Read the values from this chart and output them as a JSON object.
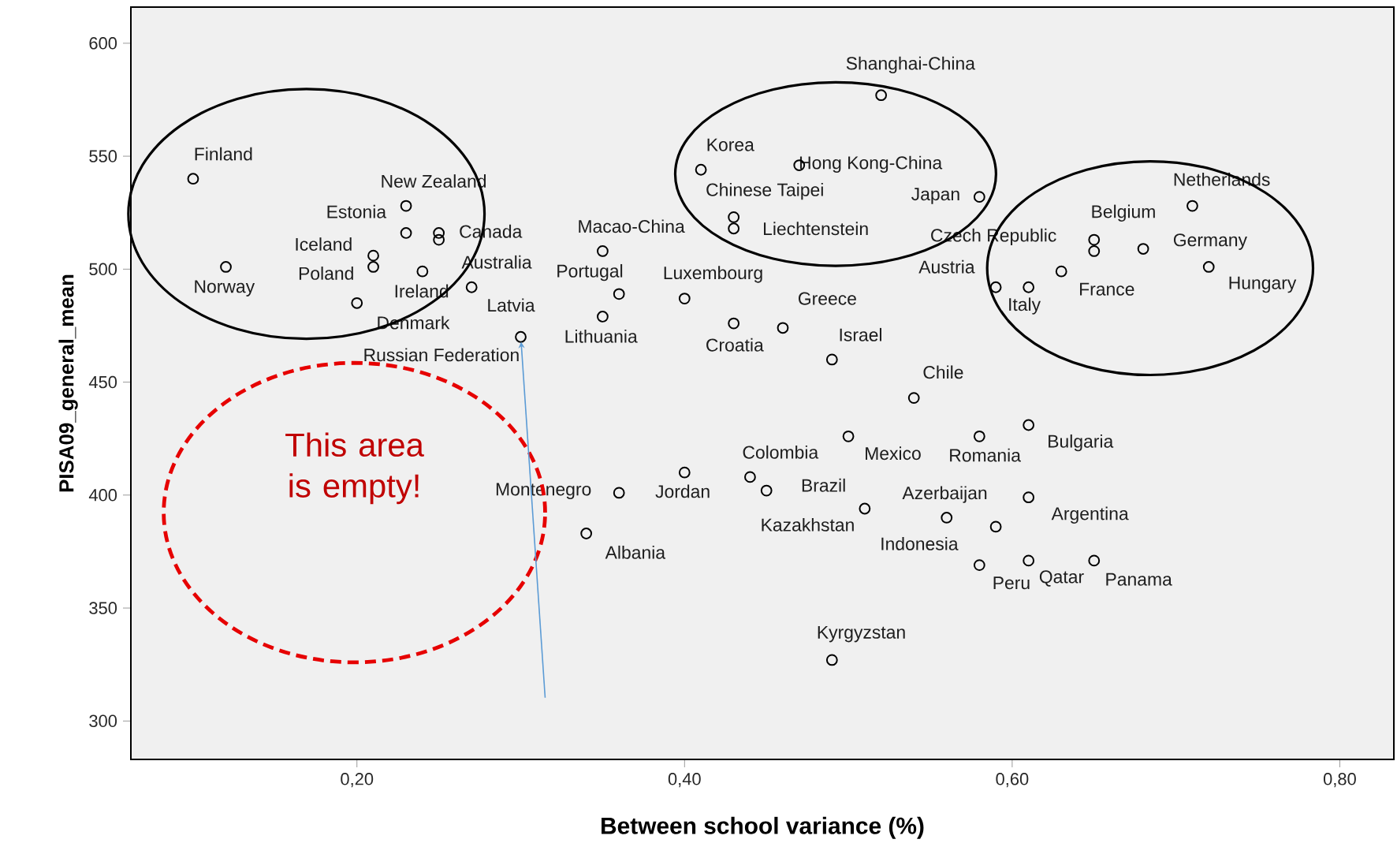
{
  "chart_data": {
    "type": "scatter",
    "xlabel": "Between school variance (%)",
    "ylabel": "PISA09_general_mean",
    "x": [
      0.1,
      0.12,
      0.23,
      0.23,
      0.25,
      0.25,
      0.21,
      0.21,
      0.24,
      0.2,
      0.27,
      0.3,
      0.35,
      0.36,
      0.35,
      0.4,
      0.43,
      0.46,
      0.49,
      0.54,
      0.52,
      0.41,
      0.47,
      0.43,
      0.43,
      0.58,
      0.65,
      0.65,
      0.59,
      0.61,
      0.63,
      0.68,
      0.71,
      0.72,
      0.61,
      0.58,
      0.5,
      0.44,
      0.45,
      0.4,
      0.36,
      0.34,
      0.51,
      0.56,
      0.61,
      0.59,
      0.58,
      0.61,
      0.65,
      0.49
    ],
    "values": [
      540,
      501,
      528,
      516,
      516,
      513,
      506,
      501,
      499,
      485,
      492,
      470,
      508,
      489,
      479,
      487,
      476,
      474,
      460,
      443,
      577,
      544,
      546,
      523,
      518,
      532,
      508,
      513,
      492,
      492,
      499,
      509,
      528,
      501,
      431,
      426,
      426,
      408,
      402,
      410,
      401,
      383,
      394,
      390,
      399,
      386,
      369,
      371,
      371,
      327
    ],
    "color": "#000000",
    "marker": "circle",
    "xlim": [
      0.062,
      0.833
    ],
    "ylim": [
      283,
      616
    ],
    "xticks": [
      {
        "value": 0.2,
        "label": "0,20"
      },
      {
        "value": 0.4,
        "label": "0,40"
      },
      {
        "value": 0.6,
        "label": "0,60"
      },
      {
        "value": 0.8,
        "label": "0,80"
      }
    ],
    "yticks": [
      300,
      350,
      400,
      450,
      500,
      550,
      600
    ],
    "annotations": [
      {
        "text": "Finland",
        "x": 0.1,
        "y": 540
      },
      {
        "text": "Norway",
        "x": 0.12,
        "y": 501
      },
      {
        "text": "New Zealand",
        "x": 0.23,
        "y": 528
      },
      {
        "text": "Estonia",
        "x": 0.23,
        "y": 516
      },
      {
        "text": "Canada",
        "x": 0.25,
        "y": 516
      },
      {
        "text": "Australia",
        "x": 0.25,
        "y": 513
      },
      {
        "text": "Iceland",
        "x": 0.21,
        "y": 506
      },
      {
        "text": "Poland",
        "x": 0.21,
        "y": 501
      },
      {
        "text": "Ireland",
        "x": 0.24,
        "y": 499
      },
      {
        "text": "Denmark",
        "x": 0.2,
        "y": 485
      },
      {
        "text": "Latvia",
        "x": 0.27,
        "y": 492
      },
      {
        "text": "Russian Federation",
        "x": 0.3,
        "y": 470
      },
      {
        "text": "Macao-China",
        "x": 0.35,
        "y": 508
      },
      {
        "text": "Portugal",
        "x": 0.36,
        "y": 489
      },
      {
        "text": "Lithuania",
        "x": 0.35,
        "y": 479
      },
      {
        "text": "Luxembourg",
        "x": 0.4,
        "y": 487
      },
      {
        "text": "Croatia",
        "x": 0.43,
        "y": 476
      },
      {
        "text": "Greece",
        "x": 0.46,
        "y": 474
      },
      {
        "text": "Israel",
        "x": 0.49,
        "y": 460
      },
      {
        "text": "Chile",
        "x": 0.54,
        "y": 443
      },
      {
        "text": "Shanghai-China",
        "x": 0.52,
        "y": 577
      },
      {
        "text": "Korea",
        "x": 0.41,
        "y": 544
      },
      {
        "text": "Hong Kong-China",
        "x": 0.47,
        "y": 546
      },
      {
        "text": "Chinese Taipei",
        "x": 0.43,
        "y": 523
      },
      {
        "text": "Liechtenstein",
        "x": 0.43,
        "y": 518
      },
      {
        "text": "Japan",
        "x": 0.58,
        "y": 532
      },
      {
        "text": "Czech Republic",
        "x": 0.65,
        "y": 508
      },
      {
        "text": "Belgium",
        "x": 0.65,
        "y": 513
      },
      {
        "text": "Austria",
        "x": 0.59,
        "y": 492
      },
      {
        "text": "Italy",
        "x": 0.61,
        "y": 492
      },
      {
        "text": "France",
        "x": 0.63,
        "y": 499
      },
      {
        "text": "Germany",
        "x": 0.68,
        "y": 509
      },
      {
        "text": "Netherlands",
        "x": 0.71,
        "y": 528
      },
      {
        "text": "Hungary",
        "x": 0.72,
        "y": 501
      },
      {
        "text": "Bulgaria",
        "x": 0.61,
        "y": 431
      },
      {
        "text": "Romania",
        "x": 0.58,
        "y": 426
      },
      {
        "text": "Mexico",
        "x": 0.5,
        "y": 426
      },
      {
        "text": "Colombia",
        "x": 0.44,
        "y": 408
      },
      {
        "text": "Brazil",
        "x": 0.45,
        "y": 402
      },
      {
        "text": "Jordan",
        "x": 0.4,
        "y": 410
      },
      {
        "text": "Montenegro",
        "x": 0.36,
        "y": 401
      },
      {
        "text": "Albania",
        "x": 0.34,
        "y": 383
      },
      {
        "text": "Kazakhstan",
        "x": 0.51,
        "y": 394
      },
      {
        "text": "Azerbaijan",
        "x": 0.56,
        "y": 390
      },
      {
        "text": "Argentina",
        "x": 0.61,
        "y": 399
      },
      {
        "text": "Indonesia",
        "x": 0.59,
        "y": 386
      },
      {
        "text": "Peru",
        "x": 0.58,
        "y": 369
      },
      {
        "text": "Qatar",
        "x": 0.61,
        "y": 371
      },
      {
        "text": "Panama",
        "x": 0.65,
        "y": 371
      },
      {
        "text": "Kyrgyzstan",
        "x": 0.49,
        "y": 327
      },
      "This area is empty!"
    ]
  }
}
